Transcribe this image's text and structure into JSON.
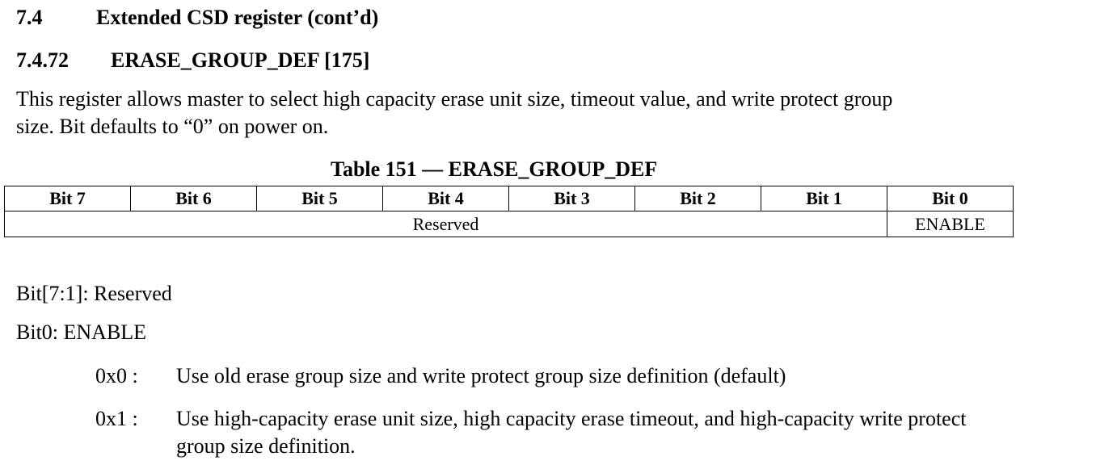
{
  "section": {
    "number": "7.4",
    "title": "Extended CSD register (cont’d)"
  },
  "subsection": {
    "number": "7.4.72",
    "title": "ERASE_GROUP_DEF [175]"
  },
  "paragraph": {
    "line1": "This register allows master to select high capacity erase unit size, timeout value, and write protect group",
    "line2": "size. Bit defaults to “0” on power on."
  },
  "table": {
    "caption": "Table 151 — ERASE_GROUP_DEF",
    "headers": [
      "Bit 7",
      "Bit 6",
      "Bit 5",
      "Bit 4",
      "Bit 3",
      "Bit 2",
      "Bit 1",
      "Bit 0"
    ],
    "row": {
      "reserved": "Reserved",
      "enable": "ENABLE"
    }
  },
  "bits": {
    "bit71": "Bit[7:1]: Reserved",
    "bit0": "Bit0: ENABLE"
  },
  "values": [
    {
      "code": "0x0 :",
      "desc_line1": "Use old erase group size and write protect group size definition (default)"
    },
    {
      "code": "0x1 :",
      "desc_line1": "Use high-capacity erase unit size, high capacity erase timeout, and high-capacity write protect",
      "desc_line2": "group size definition."
    }
  ]
}
